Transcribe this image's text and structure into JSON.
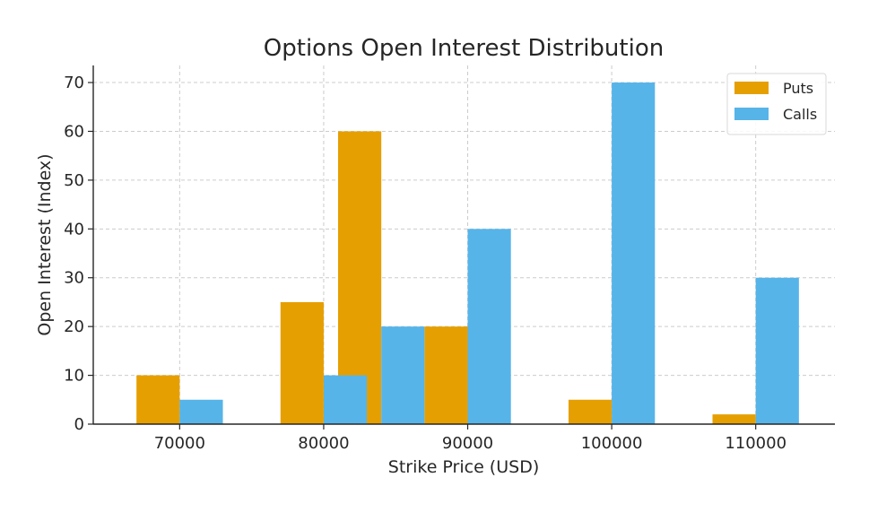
{
  "chart_data": {
    "type": "bar",
    "title": "Options Open Interest Distribution",
    "xlabel": "Strike Price (USD)",
    "ylabel": "Open Interest (Index)",
    "xlim": [
      64000,
      115500
    ],
    "ylim": [
      0,
      73.5
    ],
    "x_ticks": [
      70000,
      80000,
      90000,
      100000,
      110000
    ],
    "y_ticks": [
      0,
      10,
      20,
      30,
      40,
      50,
      60,
      70
    ],
    "grid": true,
    "legend_position": "top-right",
    "bar_width": 3000,
    "series": [
      {
        "name": "Puts",
        "color": "#E69F00",
        "points": [
          {
            "x": 68500,
            "y": 10
          },
          {
            "x": 78500,
            "y": 25
          },
          {
            "x": 82500,
            "y": 60
          },
          {
            "x": 88500,
            "y": 20
          },
          {
            "x": 98500,
            "y": 5
          },
          {
            "x": 108500,
            "y": 2
          }
        ]
      },
      {
        "name": "Calls",
        "color": "#56B4E9",
        "points": [
          {
            "x": 71500,
            "y": 5
          },
          {
            "x": 81500,
            "y": 10
          },
          {
            "x": 85500,
            "y": 20
          },
          {
            "x": 91500,
            "y": 40
          },
          {
            "x": 101500,
            "y": 70
          },
          {
            "x": 111500,
            "y": 30
          }
        ]
      }
    ]
  }
}
